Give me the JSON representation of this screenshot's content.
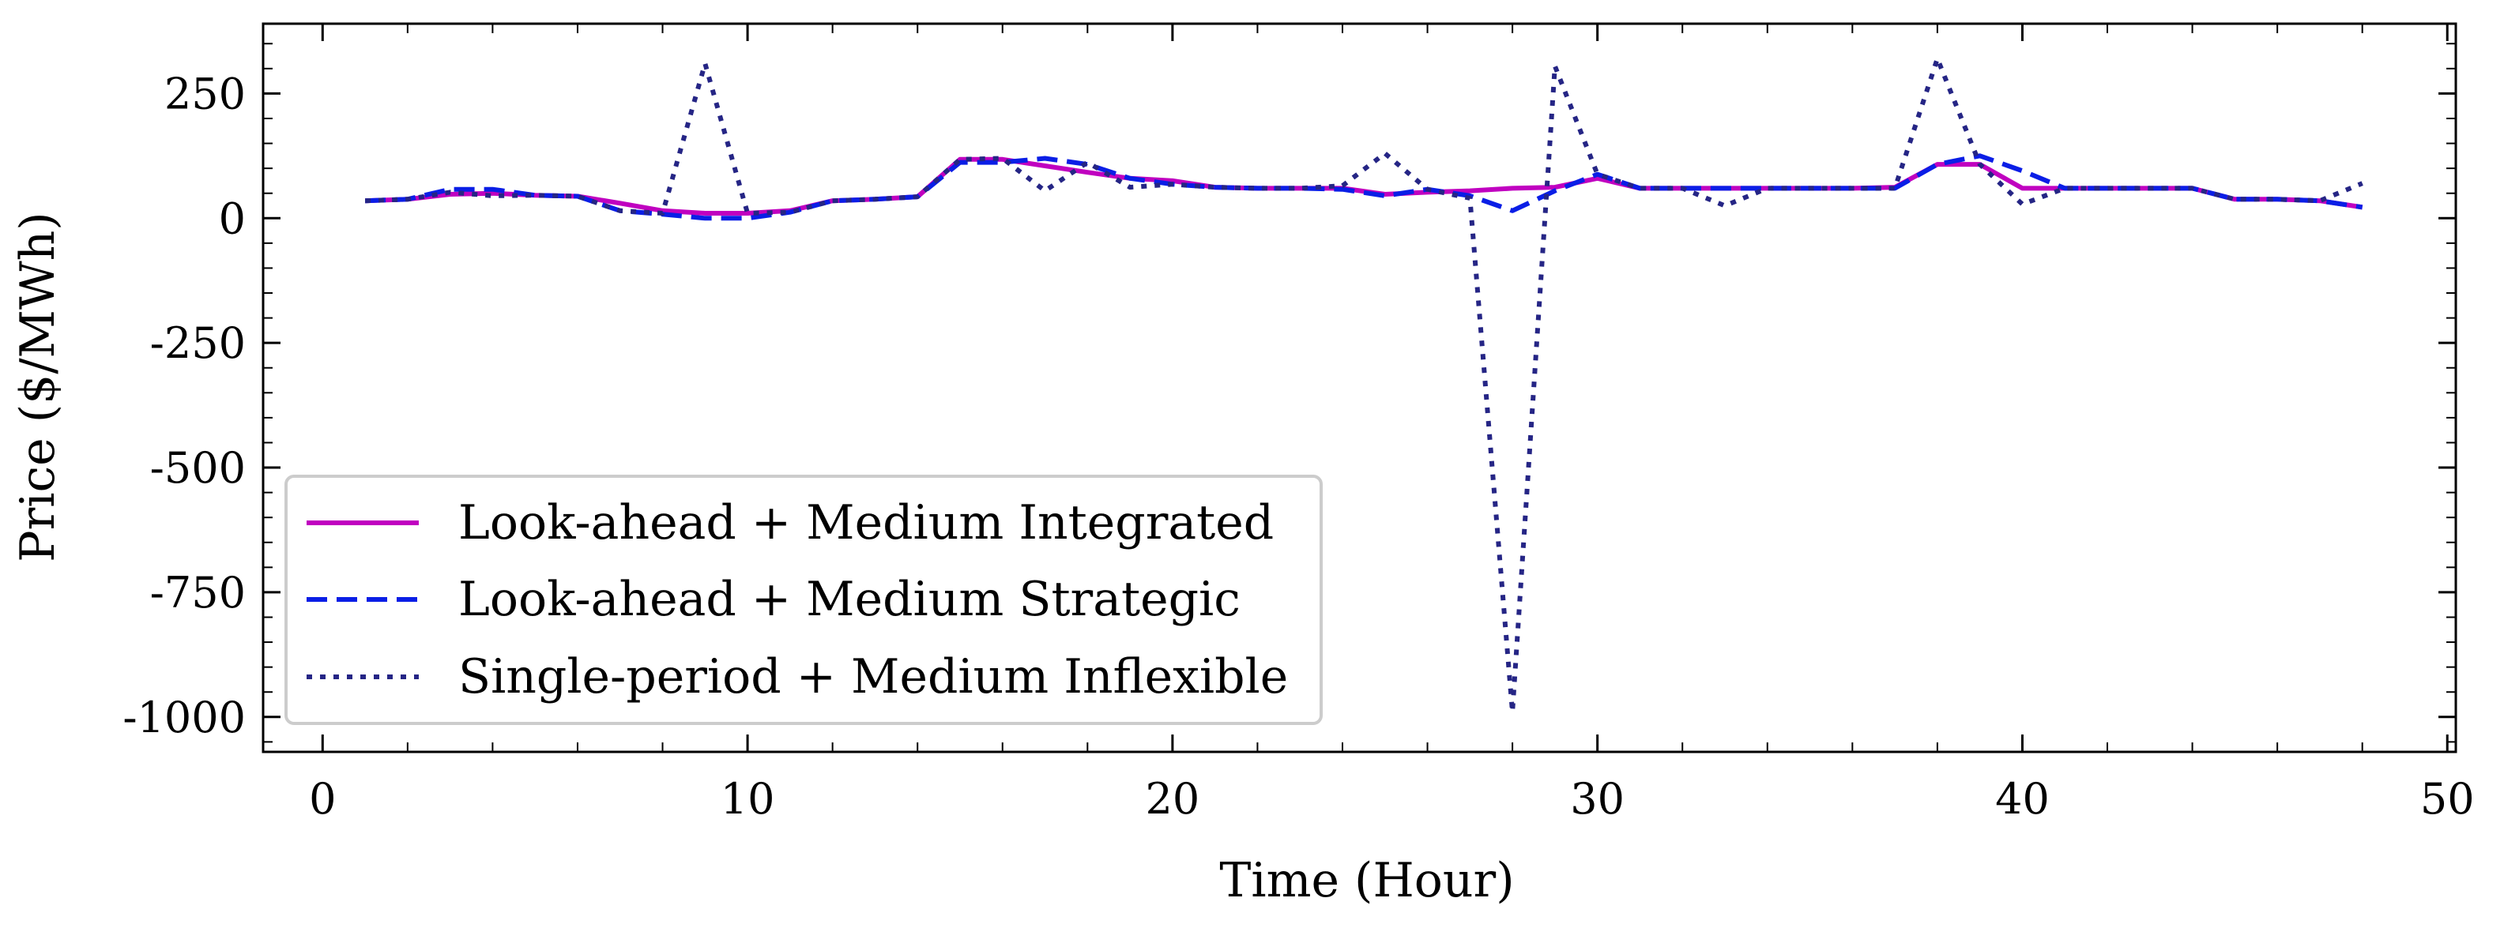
{
  "chart_data": {
    "type": "line",
    "xlabel": "Time (Hour)",
    "ylabel": "Price ($/MWh)",
    "xlim": [
      -1.4,
      50.2
    ],
    "ylim": [
      -1070,
      390
    ],
    "xticks": [
      0,
      10,
      20,
      30,
      40,
      50
    ],
    "yticks": [
      250,
      0,
      -250,
      -500,
      -750,
      -1000
    ],
    "xtick_labels": [
      "0",
      "10",
      "20",
      "30",
      "40",
      "50"
    ],
    "ytick_labels": [
      "250",
      "0",
      "-250",
      "-500",
      "-750",
      "-1000"
    ],
    "x_minor_step": 2,
    "y_minor_step": 50,
    "grid": false,
    "legend_position": "lower-left",
    "x": [
      1,
      2,
      3,
      4,
      5,
      6,
      7,
      8,
      9,
      10,
      11,
      12,
      13,
      14,
      15,
      16,
      17,
      18,
      19,
      20,
      21,
      22,
      23,
      24,
      25,
      26,
      27,
      28,
      29,
      30,
      31,
      32,
      33,
      34,
      35,
      36,
      37,
      38,
      39,
      40,
      41,
      42,
      43,
      44,
      45,
      46,
      47,
      48
    ],
    "series": [
      {
        "name": "Look-ahead + Medium Integrated",
        "color": "#c000c0",
        "style": "solid",
        "values": [
          35,
          38,
          48,
          50,
          46,
          44,
          30,
          15,
          10,
          10,
          15,
          35,
          38,
          43,
          118,
          118,
          105,
          92,
          80,
          75,
          62,
          60,
          60,
          60,
          48,
          52,
          55,
          60,
          62,
          80,
          60,
          60,
          60,
          60,
          60,
          60,
          62,
          108,
          108,
          60,
          60,
          60,
          60,
          60,
          38,
          38,
          35,
          22
        ]
      },
      {
        "name": "Look-ahead + Medium Strategic",
        "color": "#0a1ee6",
        "style": "dashed",
        "values": [
          35,
          38,
          58,
          58,
          46,
          44,
          15,
          8,
          0,
          0,
          12,
          35,
          38,
          43,
          112,
          112,
          120,
          108,
          80,
          68,
          62,
          60,
          60,
          58,
          45,
          58,
          45,
          15,
          55,
          88,
          60,
          60,
          60,
          60,
          60,
          60,
          60,
          108,
          125,
          95,
          60,
          60,
          60,
          60,
          38,
          38,
          35,
          22
        ]
      },
      {
        "name": "Single-period + Medium Inflexible",
        "color": "#252585",
        "style": "dotted",
        "values": [
          35,
          38,
          52,
          45,
          46,
          44,
          15,
          10,
          310,
          10,
          12,
          35,
          38,
          43,
          118,
          120,
          55,
          112,
          62,
          68,
          62,
          60,
          60,
          65,
          130,
          58,
          40,
          -990,
          305,
          88,
          60,
          60,
          25,
          60,
          60,
          60,
          60,
          320,
          108,
          28,
          60,
          60,
          60,
          60,
          38,
          38,
          35,
          70
        ]
      }
    ]
  }
}
